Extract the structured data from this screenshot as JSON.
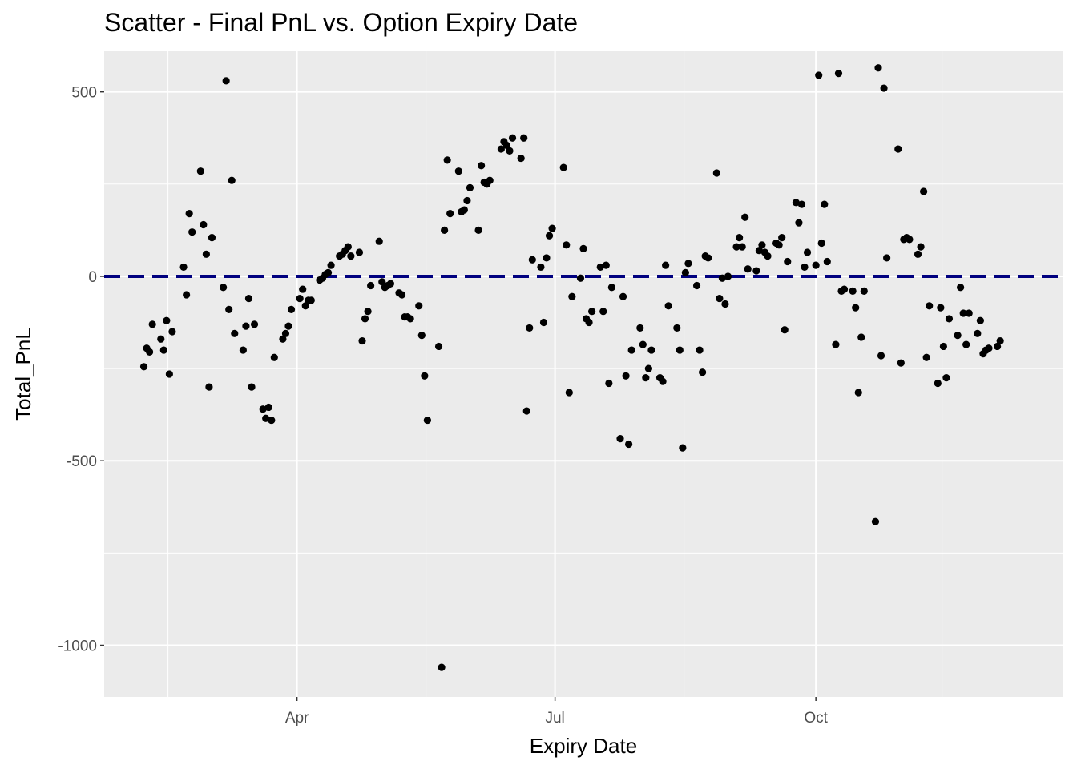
{
  "chart_data": {
    "type": "scatter",
    "title": "Scatter - Final PnL vs. Option Expiry Date",
    "xlabel": "Expiry Date",
    "ylabel": "Total_PnL",
    "x_ticks": [
      "Apr",
      "Jul",
      "Oct"
    ],
    "y_ticks": [
      "500",
      "0",
      "-500",
      "-1000"
    ],
    "y_tick_values": [
      500,
      0,
      -500,
      -1000
    ],
    "ylim": [
      -1140,
      610
    ],
    "xlim": [
      "2023-01-23",
      "2023-12-27"
    ],
    "grid": true,
    "reference_line": {
      "y": 0,
      "style": "dashed",
      "color": "#00007f"
    },
    "point_color": "#000000",
    "panel_color": "#ebebeb",
    "points": [
      {
        "x": "2023-02-06",
        "y": -245
      },
      {
        "x": "2023-02-07",
        "y": -195
      },
      {
        "x": "2023-02-08",
        "y": -205
      },
      {
        "x": "2023-02-09",
        "y": -130
      },
      {
        "x": "2023-02-12",
        "y": -170
      },
      {
        "x": "2023-02-13",
        "y": -200
      },
      {
        "x": "2023-02-14",
        "y": -120
      },
      {
        "x": "2023-02-15",
        "y": -265
      },
      {
        "x": "2023-02-16",
        "y": -150
      },
      {
        "x": "2023-02-20",
        "y": 25
      },
      {
        "x": "2023-02-21",
        "y": -50
      },
      {
        "x": "2023-02-22",
        "y": 170
      },
      {
        "x": "2023-02-23",
        "y": 120
      },
      {
        "x": "2023-02-26",
        "y": 285
      },
      {
        "x": "2023-02-27",
        "y": 140
      },
      {
        "x": "2023-02-28",
        "y": 60
      },
      {
        "x": "2023-03-01",
        "y": -300
      },
      {
        "x": "2023-03-02",
        "y": 105
      },
      {
        "x": "2023-03-06",
        "y": -30
      },
      {
        "x": "2023-03-07",
        "y": 530
      },
      {
        "x": "2023-03-08",
        "y": -90
      },
      {
        "x": "2023-03-09",
        "y": 260
      },
      {
        "x": "2023-03-10",
        "y": -155
      },
      {
        "x": "2023-03-13",
        "y": -200
      },
      {
        "x": "2023-03-14",
        "y": -135
      },
      {
        "x": "2023-03-15",
        "y": -60
      },
      {
        "x": "2023-03-16",
        "y": -300
      },
      {
        "x": "2023-03-17",
        "y": -130
      },
      {
        "x": "2023-03-20",
        "y": -360
      },
      {
        "x": "2023-03-21",
        "y": -385
      },
      {
        "x": "2023-03-22",
        "y": -355
      },
      {
        "x": "2023-03-23",
        "y": -390
      },
      {
        "x": "2023-03-24",
        "y": -220
      },
      {
        "x": "2023-03-27",
        "y": -170
      },
      {
        "x": "2023-03-28",
        "y": -155
      },
      {
        "x": "2023-03-29",
        "y": -135
      },
      {
        "x": "2023-03-30",
        "y": -90
      },
      {
        "x": "2023-04-02",
        "y": -60
      },
      {
        "x": "2023-04-03",
        "y": -35
      },
      {
        "x": "2023-04-04",
        "y": -80
      },
      {
        "x": "2023-04-05",
        "y": -65
      },
      {
        "x": "2023-04-06",
        "y": -65
      },
      {
        "x": "2023-04-09",
        "y": -10
      },
      {
        "x": "2023-04-10",
        "y": -5
      },
      {
        "x": "2023-04-11",
        "y": 5
      },
      {
        "x": "2023-04-12",
        "y": 10
      },
      {
        "x": "2023-04-13",
        "y": 30
      },
      {
        "x": "2023-04-16",
        "y": 55
      },
      {
        "x": "2023-04-17",
        "y": 60
      },
      {
        "x": "2023-04-18",
        "y": 70
      },
      {
        "x": "2023-04-19",
        "y": 80
      },
      {
        "x": "2023-04-20",
        "y": 55
      },
      {
        "x": "2023-04-23",
        "y": 65
      },
      {
        "x": "2023-04-24",
        "y": -175
      },
      {
        "x": "2023-04-25",
        "y": -115
      },
      {
        "x": "2023-04-26",
        "y": -95
      },
      {
        "x": "2023-04-27",
        "y": -25
      },
      {
        "x": "2023-04-30",
        "y": 95
      },
      {
        "x": "2023-05-01",
        "y": -15
      },
      {
        "x": "2023-05-02",
        "y": -30
      },
      {
        "x": "2023-05-03",
        "y": -25
      },
      {
        "x": "2023-05-04",
        "y": -20
      },
      {
        "x": "2023-05-07",
        "y": -45
      },
      {
        "x": "2023-05-08",
        "y": -50
      },
      {
        "x": "2023-05-09",
        "y": -110
      },
      {
        "x": "2023-05-10",
        "y": -110
      },
      {
        "x": "2023-05-11",
        "y": -115
      },
      {
        "x": "2023-05-14",
        "y": -80
      },
      {
        "x": "2023-05-15",
        "y": -160
      },
      {
        "x": "2023-05-16",
        "y": -270
      },
      {
        "x": "2023-05-17",
        "y": -390
      },
      {
        "x": "2023-05-21",
        "y": -190
      },
      {
        "x": "2023-05-22",
        "y": -1060
      },
      {
        "x": "2023-05-23",
        "y": 125
      },
      {
        "x": "2023-05-24",
        "y": 315
      },
      {
        "x": "2023-05-25",
        "y": 170
      },
      {
        "x": "2023-05-28",
        "y": 285
      },
      {
        "x": "2023-05-29",
        "y": 175
      },
      {
        "x": "2023-05-30",
        "y": 180
      },
      {
        "x": "2023-05-31",
        "y": 205
      },
      {
        "x": "2023-06-01",
        "y": 240
      },
      {
        "x": "2023-06-04",
        "y": 125
      },
      {
        "x": "2023-06-05",
        "y": 300
      },
      {
        "x": "2023-06-06",
        "y": 255
      },
      {
        "x": "2023-06-07",
        "y": 250
      },
      {
        "x": "2023-06-08",
        "y": 260
      },
      {
        "x": "2023-06-12",
        "y": 345
      },
      {
        "x": "2023-06-13",
        "y": 365
      },
      {
        "x": "2023-06-14",
        "y": 355
      },
      {
        "x": "2023-06-15",
        "y": 340
      },
      {
        "x": "2023-06-16",
        "y": 375
      },
      {
        "x": "2023-06-19",
        "y": 320
      },
      {
        "x": "2023-06-20",
        "y": 375
      },
      {
        "x": "2023-06-21",
        "y": -365
      },
      {
        "x": "2023-06-22",
        "y": -140
      },
      {
        "x": "2023-06-23",
        "y": 45
      },
      {
        "x": "2023-06-26",
        "y": 25
      },
      {
        "x": "2023-06-27",
        "y": -125
      },
      {
        "x": "2023-06-28",
        "y": 50
      },
      {
        "x": "2023-06-29",
        "y": 110
      },
      {
        "x": "2023-06-30",
        "y": 130
      },
      {
        "x": "2023-07-04",
        "y": 295
      },
      {
        "x": "2023-07-05",
        "y": 85
      },
      {
        "x": "2023-07-06",
        "y": -315
      },
      {
        "x": "2023-07-07",
        "y": -55
      },
      {
        "x": "2023-07-10",
        "y": -5
      },
      {
        "x": "2023-07-11",
        "y": 75
      },
      {
        "x": "2023-07-12",
        "y": -115
      },
      {
        "x": "2023-07-13",
        "y": -125
      },
      {
        "x": "2023-07-14",
        "y": -95
      },
      {
        "x": "2023-07-17",
        "y": 25
      },
      {
        "x": "2023-07-18",
        "y": -95
      },
      {
        "x": "2023-07-19",
        "y": 30
      },
      {
        "x": "2023-07-20",
        "y": -290
      },
      {
        "x": "2023-07-21",
        "y": -30
      },
      {
        "x": "2023-07-24",
        "y": -440
      },
      {
        "x": "2023-07-25",
        "y": -55
      },
      {
        "x": "2023-07-26",
        "y": -270
      },
      {
        "x": "2023-07-27",
        "y": -455
      },
      {
        "x": "2023-07-28",
        "y": -200
      },
      {
        "x": "2023-07-31",
        "y": -140
      },
      {
        "x": "2023-08-01",
        "y": -185
      },
      {
        "x": "2023-08-02",
        "y": -275
      },
      {
        "x": "2023-08-03",
        "y": -250
      },
      {
        "x": "2023-08-04",
        "y": -200
      },
      {
        "x": "2023-08-07",
        "y": -275
      },
      {
        "x": "2023-08-08",
        "y": -285
      },
      {
        "x": "2023-08-09",
        "y": 30
      },
      {
        "x": "2023-08-10",
        "y": -80
      },
      {
        "x": "2023-08-13",
        "y": -140
      },
      {
        "x": "2023-08-14",
        "y": -200
      },
      {
        "x": "2023-08-15",
        "y": -465
      },
      {
        "x": "2023-08-16",
        "y": 10
      },
      {
        "x": "2023-08-17",
        "y": 35
      },
      {
        "x": "2023-08-20",
        "y": -25
      },
      {
        "x": "2023-08-21",
        "y": -200
      },
      {
        "x": "2023-08-22",
        "y": -260
      },
      {
        "x": "2023-08-23",
        "y": 55
      },
      {
        "x": "2023-08-24",
        "y": 50
      },
      {
        "x": "2023-08-27",
        "y": 280
      },
      {
        "x": "2023-08-28",
        "y": -60
      },
      {
        "x": "2023-08-29",
        "y": -5
      },
      {
        "x": "2023-08-30",
        "y": -75
      },
      {
        "x": "2023-08-31",
        "y": 0
      },
      {
        "x": "2023-09-03",
        "y": 80
      },
      {
        "x": "2023-09-04",
        "y": 105
      },
      {
        "x": "2023-09-05",
        "y": 80
      },
      {
        "x": "2023-09-06",
        "y": 160
      },
      {
        "x": "2023-09-07",
        "y": 20
      },
      {
        "x": "2023-09-10",
        "y": 15
      },
      {
        "x": "2023-09-11",
        "y": 70
      },
      {
        "x": "2023-09-12",
        "y": 85
      },
      {
        "x": "2023-09-13",
        "y": 65
      },
      {
        "x": "2023-09-14",
        "y": 55
      },
      {
        "x": "2023-09-17",
        "y": 90
      },
      {
        "x": "2023-09-18",
        "y": 85
      },
      {
        "x": "2023-09-19",
        "y": 105
      },
      {
        "x": "2023-09-20",
        "y": -145
      },
      {
        "x": "2023-09-21",
        "y": 40
      },
      {
        "x": "2023-09-24",
        "y": 200
      },
      {
        "x": "2023-09-25",
        "y": 145
      },
      {
        "x": "2023-09-26",
        "y": 195
      },
      {
        "x": "2023-09-27",
        "y": 25
      },
      {
        "x": "2023-09-28",
        "y": 65
      },
      {
        "x": "2023-10-01",
        "y": 30
      },
      {
        "x": "2023-10-02",
        "y": 545
      },
      {
        "x": "2023-10-03",
        "y": 90
      },
      {
        "x": "2023-10-04",
        "y": 195
      },
      {
        "x": "2023-10-05",
        "y": 40
      },
      {
        "x": "2023-10-08",
        "y": -185
      },
      {
        "x": "2023-10-09",
        "y": 550
      },
      {
        "x": "2023-10-10",
        "y": -40
      },
      {
        "x": "2023-10-11",
        "y": -35
      },
      {
        "x": "2023-10-14",
        "y": -40
      },
      {
        "x": "2023-10-15",
        "y": -85
      },
      {
        "x": "2023-10-16",
        "y": -315
      },
      {
        "x": "2023-10-17",
        "y": -165
      },
      {
        "x": "2023-10-18",
        "y": -40
      },
      {
        "x": "2023-10-22",
        "y": -665
      },
      {
        "x": "2023-10-23",
        "y": 565
      },
      {
        "x": "2023-10-24",
        "y": -215
      },
      {
        "x": "2023-10-25",
        "y": 510
      },
      {
        "x": "2023-10-26",
        "y": 50
      },
      {
        "x": "2023-10-30",
        "y": 345
      },
      {
        "x": "2023-10-31",
        "y": -235
      },
      {
        "x": "2023-11-01",
        "y": 100
      },
      {
        "x": "2023-11-02",
        "y": 105
      },
      {
        "x": "2023-11-03",
        "y": 100
      },
      {
        "x": "2023-11-06",
        "y": 60
      },
      {
        "x": "2023-11-07",
        "y": 80
      },
      {
        "x": "2023-11-08",
        "y": 230
      },
      {
        "x": "2023-11-09",
        "y": -220
      },
      {
        "x": "2023-11-10",
        "y": -80
      },
      {
        "x": "2023-11-13",
        "y": -290
      },
      {
        "x": "2023-11-14",
        "y": -85
      },
      {
        "x": "2023-11-15",
        "y": -190
      },
      {
        "x": "2023-11-16",
        "y": -275
      },
      {
        "x": "2023-11-17",
        "y": -115
      },
      {
        "x": "2023-11-20",
        "y": -160
      },
      {
        "x": "2023-11-21",
        "y": -30
      },
      {
        "x": "2023-11-22",
        "y": -100
      },
      {
        "x": "2023-11-23",
        "y": -185
      },
      {
        "x": "2023-11-24",
        "y": -100
      },
      {
        "x": "2023-11-27",
        "y": -155
      },
      {
        "x": "2023-11-28",
        "y": -120
      },
      {
        "x": "2023-11-29",
        "y": -210
      },
      {
        "x": "2023-11-30",
        "y": -200
      },
      {
        "x": "2023-12-01",
        "y": -195
      },
      {
        "x": "2023-12-04",
        "y": -190
      },
      {
        "x": "2023-12-05",
        "y": -175
      }
    ]
  }
}
